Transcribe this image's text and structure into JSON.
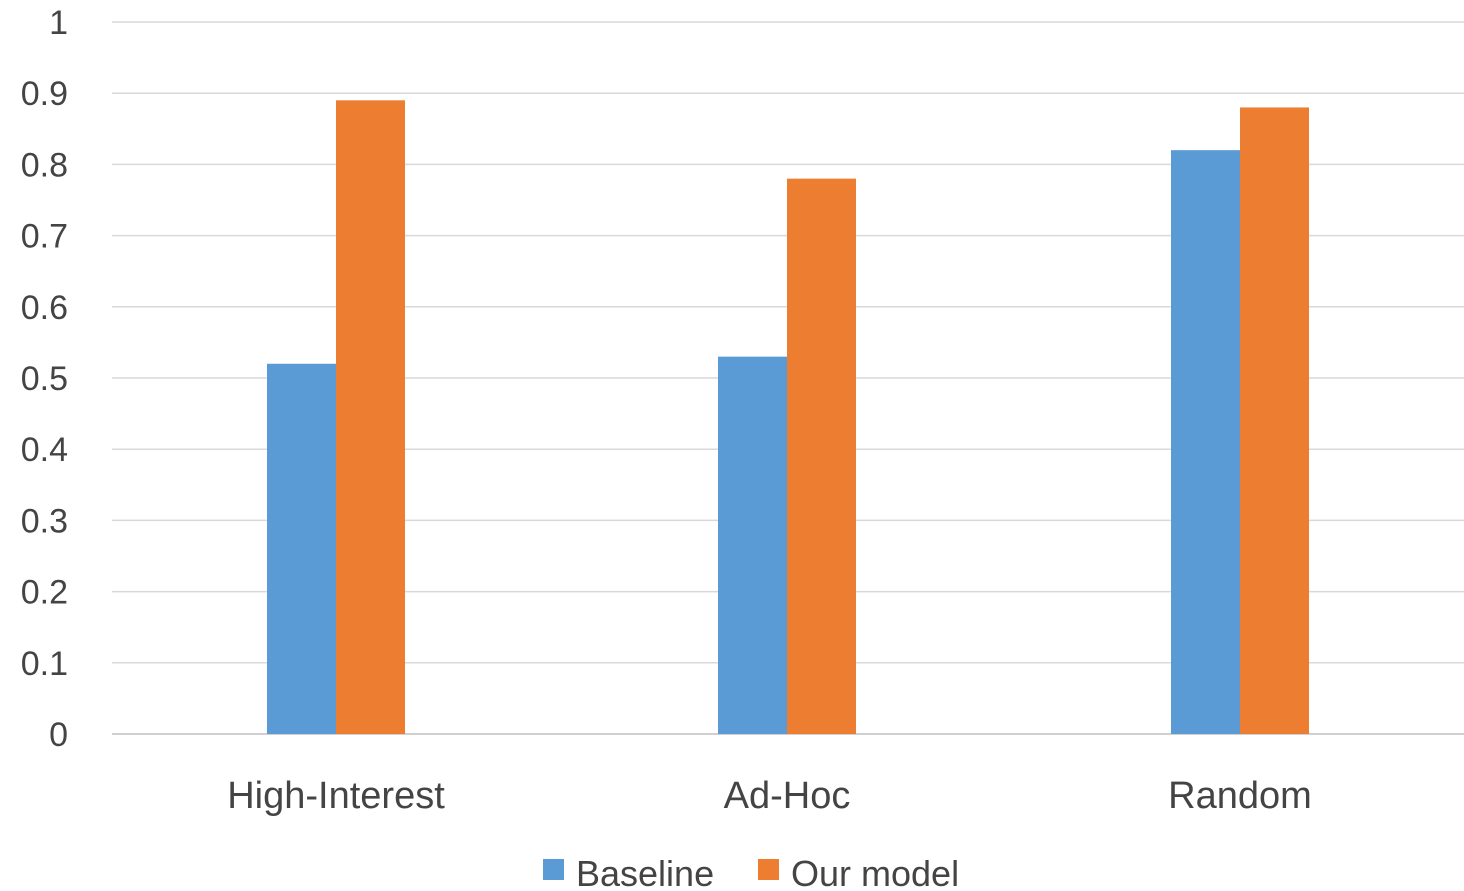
{
  "chart_data": {
    "type": "bar",
    "title": "",
    "xlabel": "",
    "ylabel": "",
    "categories": [
      "High-Interest",
      "Ad-Hoc",
      "Random"
    ],
    "series": [
      {
        "name": "Baseline",
        "values": [
          0.52,
          0.53,
          0.82
        ],
        "color": "#5B9BD5"
      },
      {
        "name": "Our model",
        "values": [
          0.89,
          0.78,
          0.88
        ],
        "color": "#ED7D31"
      }
    ],
    "ylim": [
      0,
      1
    ],
    "yticks": [
      "0",
      "0.1",
      "0.2",
      "0.3",
      "0.4",
      "0.5",
      "0.6",
      "0.7",
      "0.8",
      "0.9",
      "1"
    ],
    "grid": true,
    "legend_position": "bottom"
  }
}
